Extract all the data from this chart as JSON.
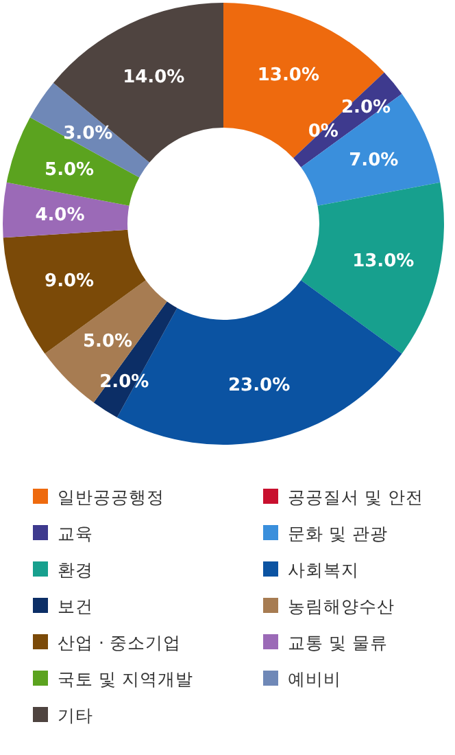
{
  "chart_data": {
    "type": "donut",
    "categories": [
      "일반공공행정",
      "공공질서 및 안전",
      "교육",
      "문화 및 관광",
      "환경",
      "사회복지",
      "보건",
      "농림해양수산",
      "산업 · 중소기업",
      "교통 및 물류",
      "국토 및 지역개발",
      "예비비",
      "기타"
    ],
    "values": [
      13.0,
      0,
      2.0,
      7.0,
      13.0,
      23.0,
      2.0,
      5.0,
      9.0,
      4.0,
      5.0,
      3.0,
      14.0
    ],
    "value_labels": [
      "13.0%",
      "0%",
      "2.0%",
      "7.0%",
      "13.0%",
      "23.0%",
      "2.0%",
      "5.0%",
      "9.0%",
      "4.0%",
      "5.0%",
      "3.0%",
      "14.0%"
    ],
    "colors": [
      "#ee6a0e",
      "#c8102e",
      "#3e3a8e",
      "#3a8fdc",
      "#17a08e",
      "#0b53a2",
      "#0c2e66",
      "#a77c52",
      "#7b4a08",
      "#9b6ab7",
      "#5ba31f",
      "#6f88b7",
      "#4f4440"
    ],
    "legend": "bottom"
  }
}
